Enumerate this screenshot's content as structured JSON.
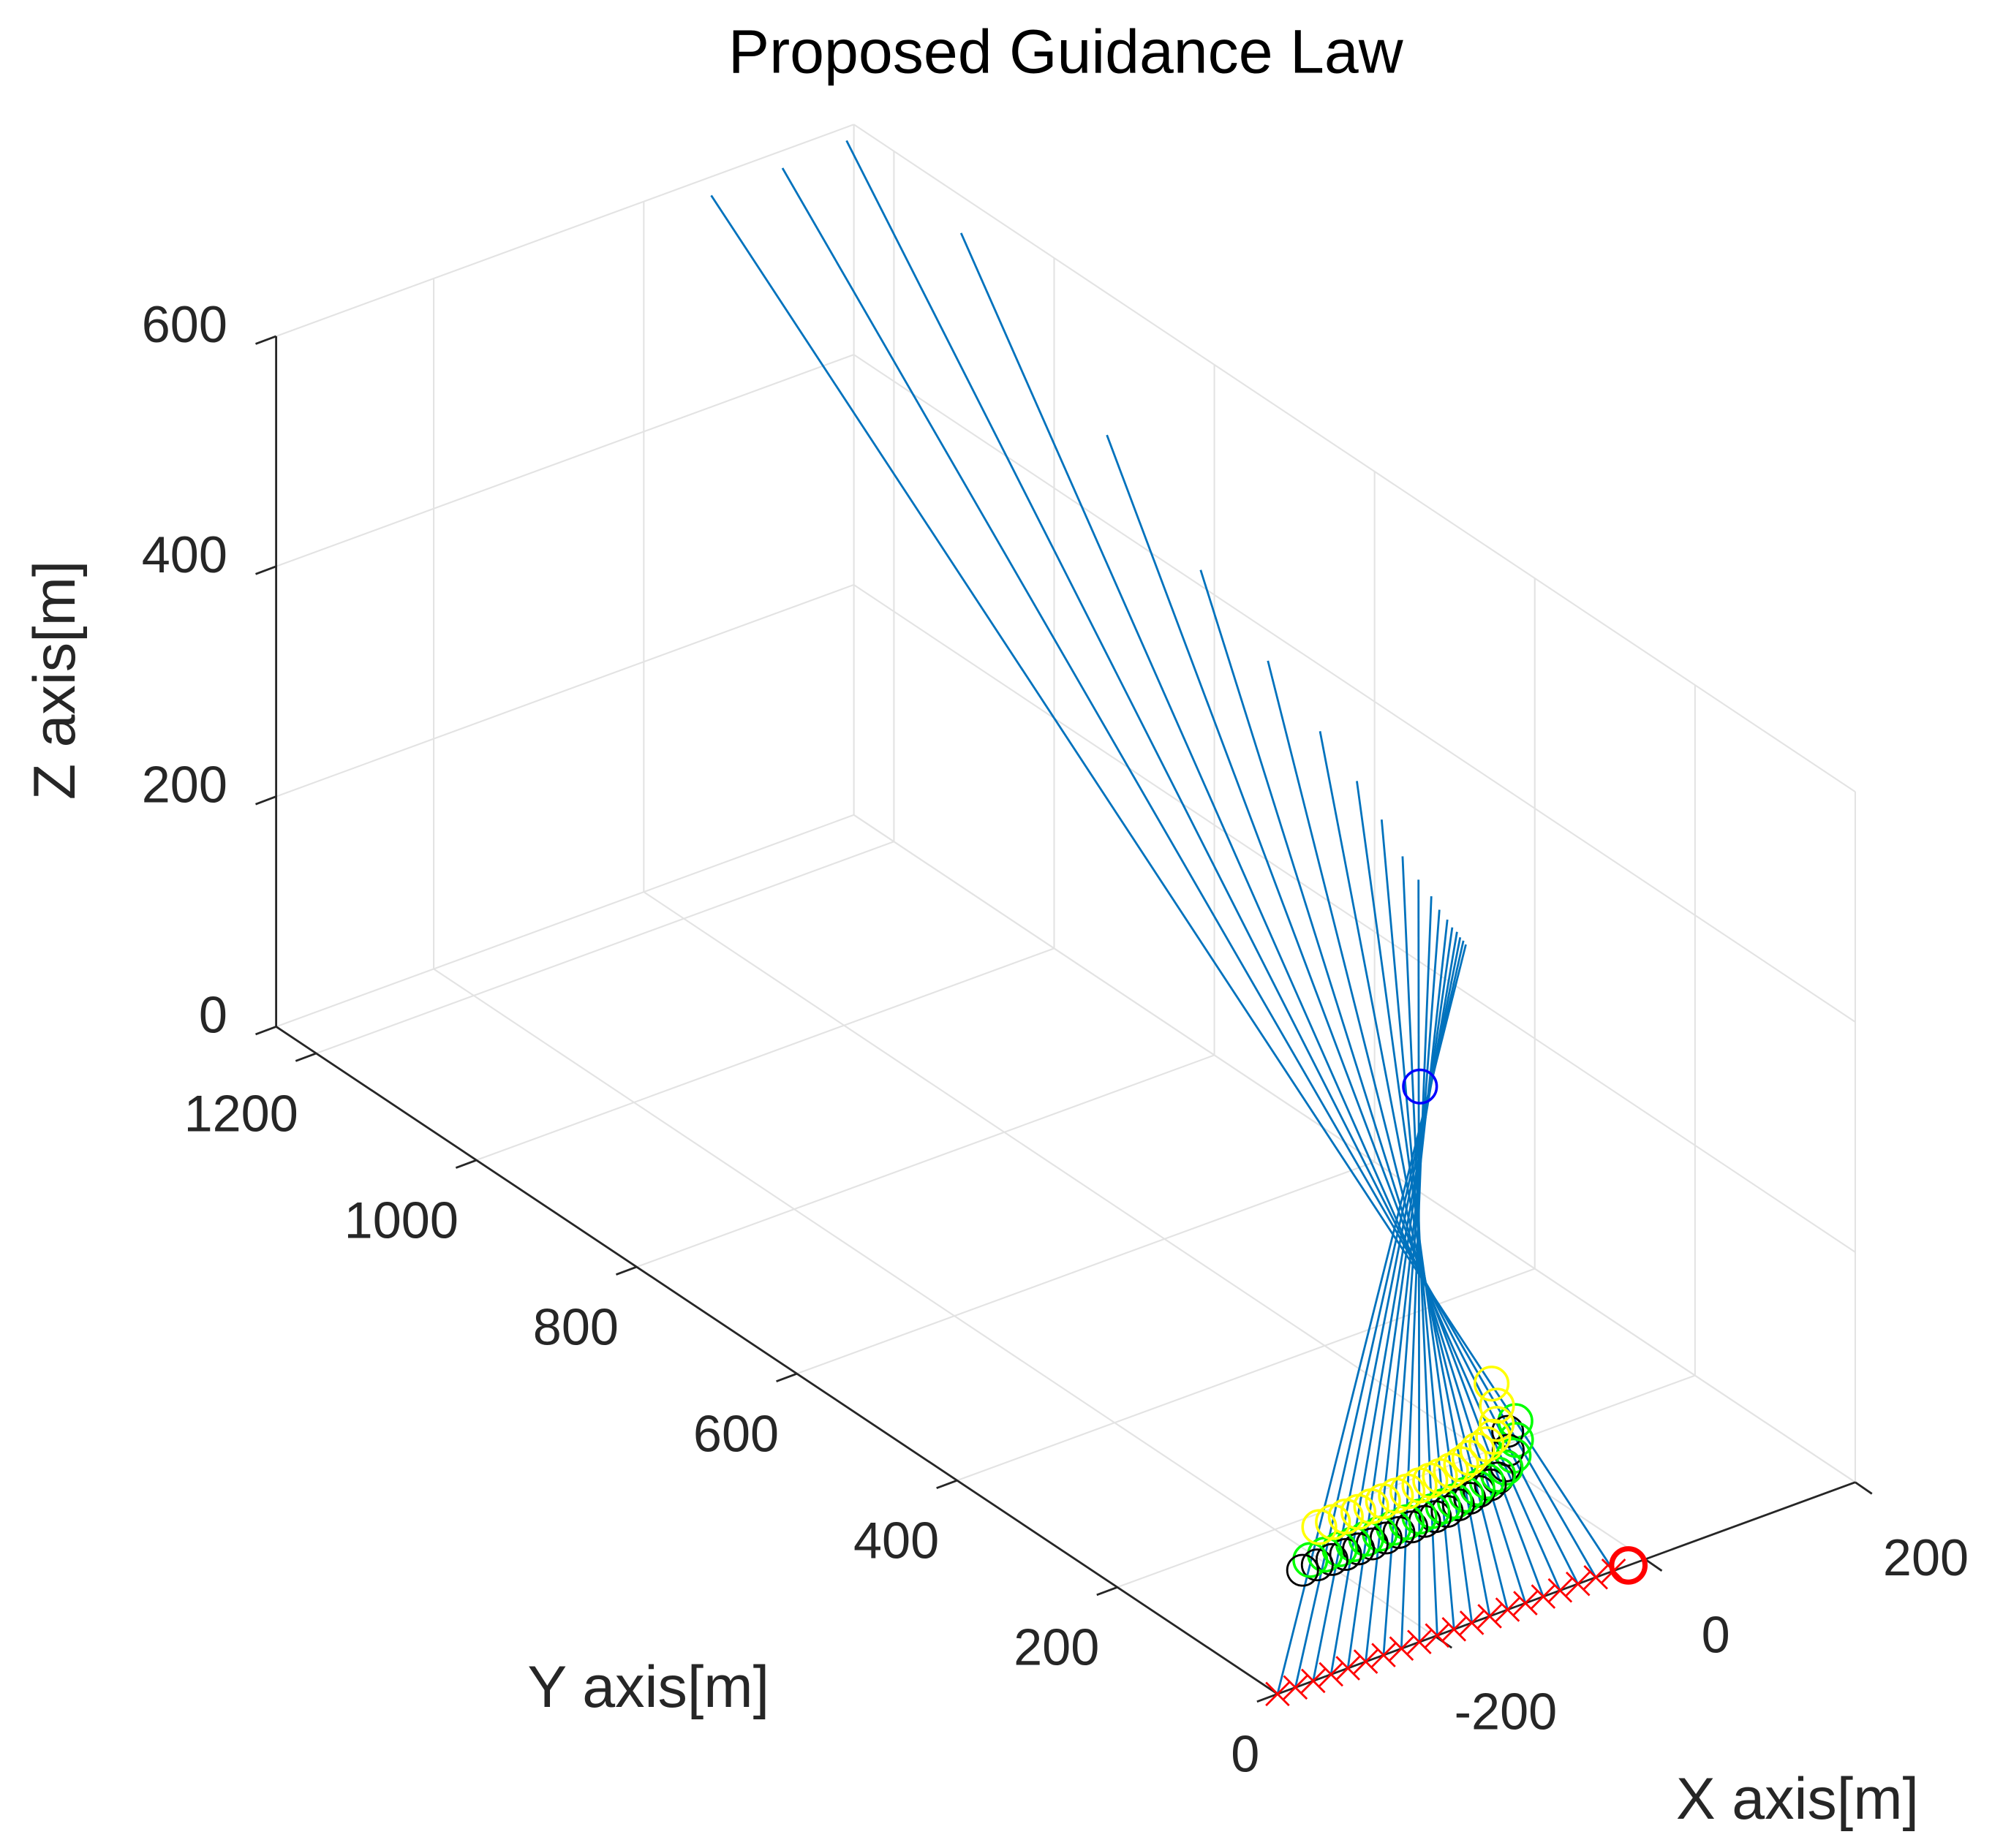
{
  "chart_data": {
    "type": "line3d",
    "title": "Proposed Guidance Law",
    "xlabel": "X axis[m]",
    "ylabel": "Y axis[m]",
    "zlabel": "Z axis[m]",
    "xlim": [
      -350,
      200
    ],
    "ylim": [
      0,
      1250
    ],
    "zlim": [
      0,
      600
    ],
    "xticks": [
      -200,
      0,
      200
    ],
    "yticks": [
      0,
      200,
      400,
      600,
      800,
      1000,
      1200
    ],
    "zticks": [
      0,
      200,
      400,
      600
    ],
    "grid": true,
    "line_color": "#0072bd",
    "end_marker_color": "#ff0000",
    "series": [
      {
        "x": [
          100,
          -30
        ],
        "y": [
          1297,
          0
        ],
        "z": [
          550,
          0
        ]
      },
      {
        "x": [
          100,
          -47
        ],
        "y": [
          1208,
          0
        ],
        "z": [
          615,
          0
        ]
      },
      {
        "x": [
          100,
          -64
        ],
        "y": [
          1128,
          0
        ],
        "z": [
          676,
          0
        ]
      },
      {
        "x": [
          100,
          -81
        ],
        "y": [
          985,
          0
        ],
        "z": [
          662,
          0
        ]
      },
      {
        "x": [
          100,
          -97
        ],
        "y": [
          803,
          0
        ],
        "z": [
          571,
          0
        ]
      },
      {
        "x": [
          100,
          -114
        ],
        "y": [
          686,
          0
        ],
        "z": [
          508,
          0
        ]
      },
      {
        "x": [
          100,
          -131
        ],
        "y": [
          602,
          0
        ],
        "z": [
          468,
          0
        ]
      },
      {
        "x": [
          100,
          -148
        ],
        "y": [
          537,
          0
        ],
        "z": [
          437,
          0
        ]
      },
      {
        "x": [
          100,
          -165
        ],
        "y": [
          491,
          0
        ],
        "z": [
          415,
          0
        ]
      },
      {
        "x": [
          100,
          -182
        ],
        "y": [
          460,
          0
        ],
        "z": [
          396,
          0
        ]
      },
      {
        "x": [
          100,
          -198
        ],
        "y": [
          434,
          0
        ],
        "z": [
          376,
          0
        ]
      },
      {
        "x": [
          100,
          -215
        ],
        "y": [
          414,
          0
        ],
        "z": [
          365,
          0
        ]
      },
      {
        "x": [
          100,
          -232
        ],
        "y": [
          398,
          0
        ],
        "z": [
          358,
          0
        ]
      },
      {
        "x": [
          100,
          -249
        ],
        "y": [
          388,
          0
        ],
        "z": [
          351,
          0
        ]
      },
      {
        "x": [
          100,
          -266
        ],
        "y": [
          378,
          0
        ],
        "z": [
          347,
          0
        ]
      },
      {
        "x": [
          100,
          -283
        ],
        "y": [
          372,
          0
        ],
        "z": [
          343,
          0
        ]
      },
      {
        "x": [
          100,
          -299
        ],
        "y": [
          366,
          0
        ],
        "z": [
          342,
          0
        ]
      },
      {
        "x": [
          100,
          -316
        ],
        "y": [
          362,
          0
        ],
        "z": [
          339,
          0
        ]
      },
      {
        "x": [
          100,
          -333
        ],
        "y": [
          358,
          0
        ],
        "z": [
          338,
          0
        ]
      },
      {
        "x": [
          100,
          -350
        ],
        "y": [
          355,
          0
        ],
        "z": [
          336,
          0
        ]
      }
    ],
    "points": [
      {
        "color": "#00ff00",
        "x": [
          -16,
          -33,
          -49,
          -65,
          -76,
          -89,
          -101,
          -114,
          -127,
          -139,
          -150,
          -163,
          -176,
          -189,
          -203,
          -216,
          -229,
          -242,
          -256,
          -270
        ],
        "y": [
          141,
          118,
          100,
          89,
          84,
          81,
          77,
          74,
          71,
          70,
          69,
          68,
          67,
          66,
          65,
          65,
          64,
          64,
          64,
          64
        ],
        "z": [
          60,
          60,
          60,
          60,
          60,
          60,
          60,
          60,
          60,
          60,
          60,
          60,
          60,
          60,
          60,
          60,
          60,
          60,
          60,
          60
        ]
      },
      {
        "color": "#ffff00",
        "x": [
          -12,
          -29,
          -46,
          -60,
          -71,
          -82,
          -94,
          -105,
          -117,
          -129,
          -139,
          -150,
          -163,
          -174,
          -187,
          -199,
          -212,
          -224,
          -237,
          -250
        ],
        "y": [
          176,
          147,
          125,
          111,
          105,
          102,
          96,
          92,
          89,
          87,
          86,
          85,
          83,
          83,
          82,
          81,
          80,
          80,
          79,
          79
        ],
        "z": [
          75,
          75,
          75,
          75,
          75,
          75,
          75,
          75,
          75,
          75,
          75,
          75,
          75,
          75,
          75,
          75,
          75,
          75,
          75,
          75
        ]
      },
      {
        "color": "#0000ff",
        "x": [
          167
        ],
        "y": [
          500
        ],
        "z": [
          123
        ]
      },
      {
        "color": "#ff0000",
        "x": [
          -16
        ],
        "y": [
          0
        ],
        "z": [
          0
        ]
      }
    ]
  }
}
